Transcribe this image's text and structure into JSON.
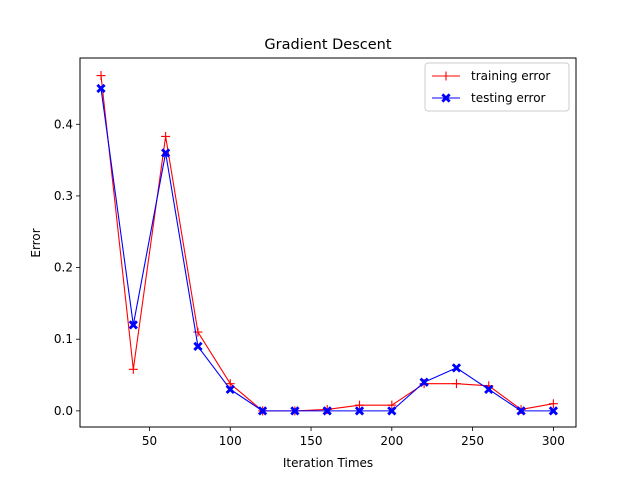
{
  "chart_data": {
    "type": "line",
    "title": "Gradient Descent",
    "xlabel": "Iteration Times",
    "ylabel": "Error",
    "x": [
      20,
      40,
      60,
      80,
      100,
      120,
      140,
      160,
      180,
      200,
      220,
      240,
      260,
      280,
      300
    ],
    "xlim": [
      7,
      314
    ],
    "ylim": [
      -0.0225,
      0.4925
    ],
    "xticks": [
      50,
      100,
      150,
      200,
      250,
      300
    ],
    "xtick_labels": [
      "50",
      "100",
      "150",
      "200",
      "250",
      "300"
    ],
    "yticks": [
      0.0,
      0.1,
      0.2,
      0.3,
      0.4
    ],
    "ytick_labels": [
      "0.0",
      "0.1",
      "0.2",
      "0.3",
      "0.4"
    ],
    "grid": false,
    "legend_position": "top-right",
    "series": [
      {
        "name": "training error",
        "color": "#ff0000",
        "marker": "plus",
        "values": [
          0.468,
          0.058,
          0.383,
          0.11,
          0.038,
          0.0,
          0.0,
          0.002,
          0.008,
          0.008,
          0.038,
          0.038,
          0.035,
          0.002,
          0.01
        ]
      },
      {
        "name": "testing error",
        "color": "#0000ff",
        "marker": "x-filled",
        "values": [
          0.45,
          0.12,
          0.36,
          0.09,
          0.03,
          0.0,
          0.0,
          0.0,
          0.0,
          0.0,
          0.04,
          0.06,
          0.03,
          0.0,
          0.0
        ]
      }
    ]
  }
}
